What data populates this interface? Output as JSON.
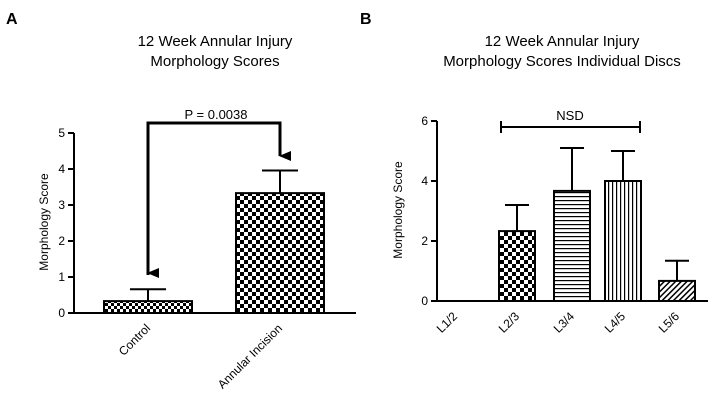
{
  "chart_data": [
    {
      "panel_label": "A",
      "type": "bar",
      "title_lines": [
        "12 Week Annular Injury",
        "Morphology Scores"
      ],
      "xlabel": "",
      "ylabel": "Morphology Score",
      "ylim": [
        0,
        5
      ],
      "yticks": [
        "0",
        "1",
        "2",
        "3",
        "4",
        "5"
      ],
      "grid": false,
      "categories": [
        "Control",
        "Annular Incision"
      ],
      "values": [
        0.33,
        3.33
      ],
      "error_upper": [
        0.33,
        0.63
      ],
      "patterns": [
        "small-check",
        "large-check"
      ],
      "annotation": {
        "text": "P = 0.0038",
        "type": "bracket-arrows",
        "from": 0,
        "to": 1
      }
    },
    {
      "panel_label": "B",
      "type": "bar",
      "title_lines": [
        "12 Week Annular Injury",
        "Morphology Scores Individual Discs"
      ],
      "xlabel": "",
      "ylabel": "Morphology Score",
      "ylim": [
        0,
        6
      ],
      "yticks": [
        "0",
        "2",
        "4",
        "6"
      ],
      "grid": false,
      "categories": [
        "L1/2",
        "L2/3",
        "L3/4",
        "L4/5",
        "L5/6"
      ],
      "values": [
        0,
        2.33,
        3.67,
        4.0,
        0.67
      ],
      "error_upper": [
        0,
        0.87,
        1.43,
        1.0,
        0.67
      ],
      "patterns": [
        "none",
        "large-check",
        "horizontal",
        "vertical",
        "diagonal"
      ],
      "annotation": {
        "text": "NSD",
        "type": "bracket",
        "from": 1,
        "to": 3
      }
    }
  ]
}
